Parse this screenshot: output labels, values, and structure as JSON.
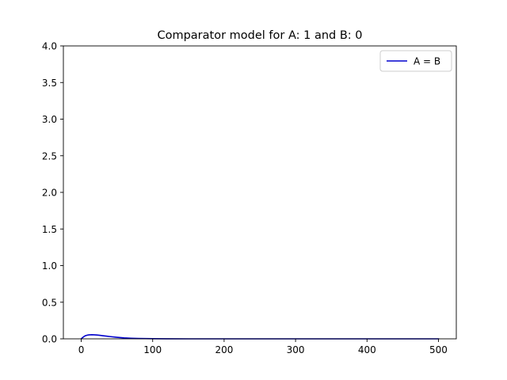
{
  "chart_data": {
    "type": "line",
    "title": "Comparator model for A: 1 and B: 0",
    "xlabel": "",
    "ylabel": "",
    "xlim": [
      -25,
      525
    ],
    "ylim": [
      0,
      4.0
    ],
    "x_ticks": [
      0,
      100,
      200,
      300,
      400,
      500
    ],
    "x_tick_labels": [
      "0",
      "100",
      "200",
      "300",
      "400",
      "500"
    ],
    "y_ticks": [
      0.0,
      0.5,
      1.0,
      1.5,
      2.0,
      2.5,
      3.0,
      3.5,
      4.0
    ],
    "y_tick_labels": [
      "0.0",
      "0.5",
      "1.0",
      "1.5",
      "2.0",
      "2.5",
      "3.0",
      "3.5",
      "4.0"
    ],
    "grid": false,
    "legend_position": "top-right",
    "series": [
      {
        "name": "A = B",
        "color": "#0000cd",
        "x": [
          0,
          2,
          4,
          6,
          8,
          10,
          12,
          15,
          18,
          22,
          26,
          30,
          35,
          40,
          50,
          60,
          70,
          80,
          90,
          100,
          120,
          150,
          200,
          300,
          400,
          500
        ],
        "y": [
          0.0,
          0.018,
          0.033,
          0.043,
          0.049,
          0.053,
          0.055,
          0.056,
          0.055,
          0.052,
          0.048,
          0.043,
          0.037,
          0.031,
          0.021,
          0.013,
          0.008,
          0.005,
          0.003,
          0.002,
          0.001,
          0.0,
          0.0,
          0.0,
          0.0,
          0.0
        ]
      }
    ]
  }
}
